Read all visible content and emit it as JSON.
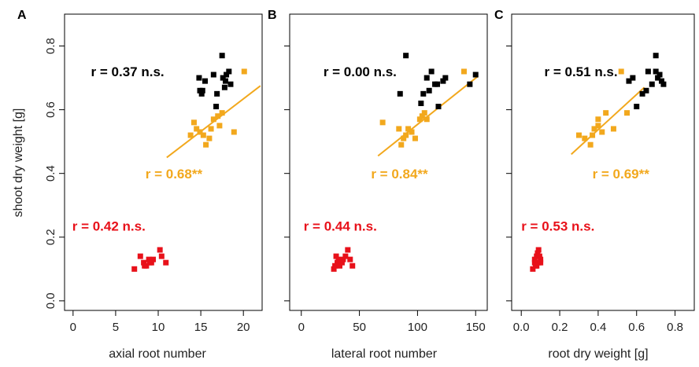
{
  "colors": {
    "black": "#000000",
    "orange": "#f2a81d",
    "red": "#e8111a"
  },
  "ylabel": "shoot dry weight [g]",
  "chart_data": [
    {
      "type": "scatter",
      "panel_label": "A",
      "xlabel": "axial root number",
      "ylabel": "shoot dry weight [g]",
      "xlim": [
        -1,
        22.2
      ],
      "ylim": [
        -0.03,
        0.9
      ],
      "xticks": [
        0,
        5,
        10,
        15,
        20
      ],
      "yticks": [
        0.0,
        0.2,
        0.4,
        0.6,
        0.8
      ],
      "series": [
        {
          "color": "#000000",
          "x": [
            14.8,
            15.1,
            14.9,
            15.2,
            15.5,
            16.5,
            16.8,
            17.5,
            17.6,
            18.0,
            18.3,
            18.5,
            17.8,
            17.9,
            16.9
          ],
          "y": [
            0.7,
            0.65,
            0.66,
            0.66,
            0.69,
            0.71,
            0.61,
            0.77,
            0.7,
            0.71,
            0.72,
            0.68,
            0.67,
            0.69,
            0.65
          ]
        },
        {
          "color": "#f2a81d",
          "x": [
            14.2,
            14.5,
            14.9,
            15.3,
            15.6,
            16.0,
            16.5,
            17.0,
            17.5,
            13.8,
            16.2,
            17.2,
            18.9,
            20.1
          ],
          "y": [
            0.56,
            0.54,
            0.53,
            0.52,
            0.49,
            0.51,
            0.57,
            0.58,
            0.59,
            0.52,
            0.54,
            0.55,
            0.53,
            0.72
          ]
        },
        {
          "color": "#e8111a",
          "x": [
            7.2,
            7.9,
            8.3,
            8.6,
            8.9,
            9.2,
            9.4,
            10.2,
            10.4,
            10.9,
            8.4,
            9.0
          ],
          "y": [
            0.1,
            0.14,
            0.12,
            0.11,
            0.13,
            0.12,
            0.13,
            0.16,
            0.14,
            0.12,
            0.11,
            0.12
          ]
        }
      ],
      "fit_line": {
        "x": [
          11.0,
          22.0
        ],
        "y": [
          0.45,
          0.675
        ],
        "color": "#f2a81d"
      },
      "annotations": [
        {
          "text": "r = 0.37 n.s.",
          "color": "#000000",
          "x": 2.1,
          "y": 0.705
        },
        {
          "text": "r = 0.68**",
          "color": "#f2a81d",
          "x": 8.5,
          "y": 0.385
        },
        {
          "text": "r = 0.42 n.s.",
          "color": "#e8111a",
          "x": -0.1,
          "y": 0.22
        }
      ]
    },
    {
      "type": "scatter",
      "panel_label": "B",
      "xlabel": "lateral root number",
      "ylabel": "",
      "xlim": [
        -10,
        160
      ],
      "ylim": [
        -0.03,
        0.9
      ],
      "xticks": [
        0,
        50,
        100,
        150
      ],
      "yticks": [
        0.0,
        0.2,
        0.4,
        0.6,
        0.8
      ],
      "series": [
        {
          "color": "#000000",
          "x": [
            85,
            90,
            105,
            108,
            112,
            115,
            118,
            122,
            124,
            145,
            150,
            110,
            117,
            103
          ],
          "y": [
            0.65,
            0.77,
            0.65,
            0.7,
            0.72,
            0.68,
            0.61,
            0.69,
            0.7,
            0.68,
            0.71,
            0.66,
            0.68,
            0.62
          ]
        },
        {
          "color": "#f2a81d",
          "x": [
            70,
            84,
            86,
            88,
            90,
            92,
            95,
            98,
            102,
            104,
            106,
            108,
            140
          ],
          "y": [
            0.56,
            0.54,
            0.49,
            0.51,
            0.52,
            0.54,
            0.53,
            0.51,
            0.57,
            0.58,
            0.59,
            0.57,
            0.72
          ]
        },
        {
          "color": "#e8111a",
          "x": [
            28,
            29,
            30,
            31,
            32,
            33,
            35,
            36,
            38,
            40,
            42,
            44
          ],
          "y": [
            0.1,
            0.11,
            0.14,
            0.12,
            0.13,
            0.11,
            0.12,
            0.13,
            0.14,
            0.16,
            0.13,
            0.11
          ]
        }
      ],
      "fit_line": {
        "x": [
          66,
          152
        ],
        "y": [
          0.455,
          0.705
        ],
        "color": "#f2a81d"
      },
      "annotations": [
        {
          "text": "r = 0.00 n.s.",
          "color": "#000000",
          "x": 19,
          "y": 0.705
        },
        {
          "text": "r = 0.84**",
          "color": "#f2a81d",
          "x": 60,
          "y": 0.385
        },
        {
          "text": "r = 0.44 n.s.",
          "color": "#e8111a",
          "x": 2,
          "y": 0.22
        }
      ]
    },
    {
      "type": "scatter",
      "panel_label": "C",
      "xlabel": "root dry weight [g]",
      "ylabel": "",
      "xlim": [
        -0.05,
        0.9
      ],
      "ylim": [
        -0.03,
        0.9
      ],
      "xticks": [
        0.0,
        0.2,
        0.4,
        0.6,
        0.8
      ],
      "yticks": [
        0.0,
        0.2,
        0.4,
        0.6,
        0.8
      ],
      "series": [
        {
          "color": "#000000",
          "x": [
            0.56,
            0.58,
            0.6,
            0.63,
            0.65,
            0.66,
            0.68,
            0.7,
            0.71,
            0.72,
            0.73,
            0.74,
            0.7
          ],
          "y": [
            0.69,
            0.7,
            0.61,
            0.65,
            0.66,
            0.72,
            0.68,
            0.77,
            0.7,
            0.71,
            0.69,
            0.68,
            0.72
          ]
        },
        {
          "color": "#f2a81d",
          "x": [
            0.3,
            0.33,
            0.36,
            0.38,
            0.4,
            0.42,
            0.44,
            0.48,
            0.52,
            0.55,
            0.4,
            0.37
          ],
          "y": [
            0.52,
            0.51,
            0.49,
            0.54,
            0.57,
            0.53,
            0.59,
            0.54,
            0.72,
            0.59,
            0.55,
            0.52
          ]
        },
        {
          "color": "#e8111a",
          "x": [
            0.06,
            0.07,
            0.08,
            0.09,
            0.1,
            0.08,
            0.09,
            0.07,
            0.085,
            0.095,
            0.1,
            0.075
          ],
          "y": [
            0.1,
            0.12,
            0.14,
            0.16,
            0.13,
            0.11,
            0.12,
            0.13,
            0.15,
            0.14,
            0.12,
            0.11
          ]
        }
      ],
      "fit_line": {
        "x": [
          0.26,
          0.64
        ],
        "y": [
          0.46,
          0.67
        ],
        "color": "#f2a81d"
      },
      "annotations": [
        {
          "text": "r = 0.51 n.s.",
          "color": "#000000",
          "x": 0.12,
          "y": 0.705
        },
        {
          "text": "r = 0.69**",
          "color": "#f2a81d",
          "x": 0.37,
          "y": 0.385
        },
        {
          "text": "r = 0.53 n.s.",
          "color": "#e8111a",
          "x": 0.0,
          "y": 0.22
        }
      ]
    }
  ]
}
